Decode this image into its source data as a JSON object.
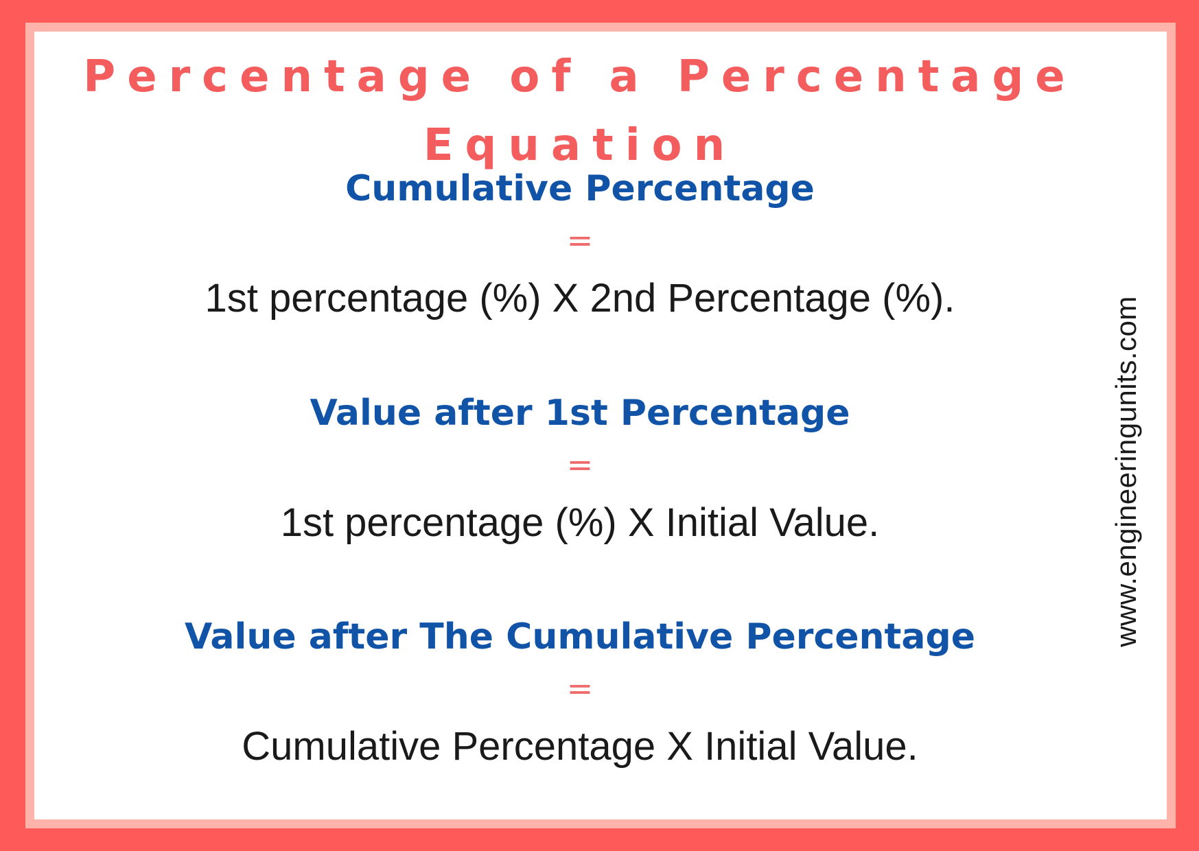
{
  "title": "Percentage of a Percentage Equation",
  "sections": [
    {
      "heading": "Cumulative Percentage",
      "equals": "=",
      "formula": "1st percentage (%) X 2nd Percentage (%)."
    },
    {
      "heading": "Value after 1st Percentage",
      "equals": "=",
      "formula": "1st percentage (%) X Initial Value."
    },
    {
      "heading": "Value after The Cumulative Percentage",
      "equals": "=",
      "formula": "Cumulative Percentage X Initial Value."
    }
  ],
  "watermark": "www.engineeringunits.com",
  "colors": {
    "outer_border": "#ff5a5a",
    "inner_border": "#ffb3aa",
    "title": "#f35d5d",
    "heading": "#1153a6",
    "equals": "#ef6b6b",
    "formula": "#1a1a1a"
  }
}
